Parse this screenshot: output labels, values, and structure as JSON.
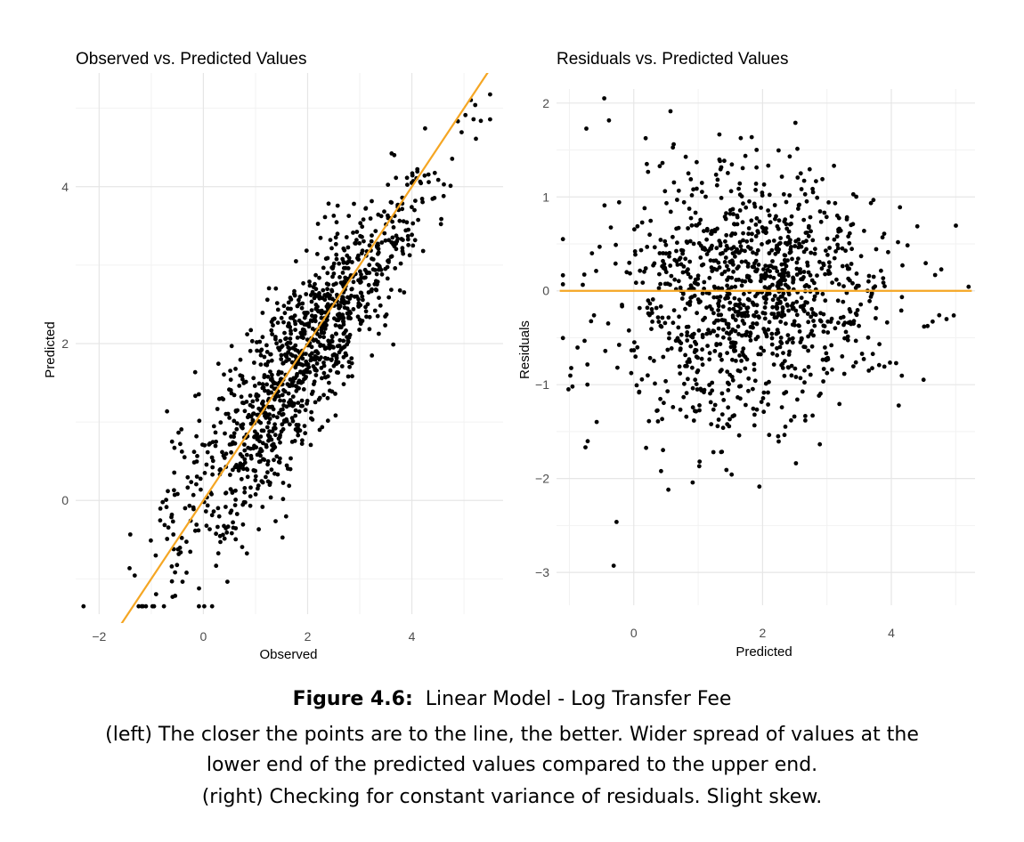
{
  "caption": {
    "label": "Figure 4.6:",
    "title": "Linear Model - Log Transfer Fee",
    "line2": "(left) The closer the points are to the line, the better. Wider spread of values at the",
    "line3": "lower end of the predicted values compared to the upper end.",
    "line4": "(right) Checking for constant variance of residuals. Slight skew."
  },
  "chart_data": [
    {
      "type": "scatter",
      "title": "Observed vs. Predicted Values",
      "xlabel": "Observed",
      "ylabel": "Predicted",
      "xlim": [
        -2.45,
        5.75
      ],
      "ylim": [
        -1.45,
        5.45
      ],
      "xticks": [
        -2,
        0,
        2,
        4
      ],
      "yticks": [
        0,
        2,
        4
      ],
      "grid": true,
      "point_color": "#000000",
      "line_color": "#F5A623",
      "reference_line": {
        "type": "identity",
        "intercept": 0,
        "slope": 1
      },
      "points_estimated": 1200
    },
    {
      "type": "scatter",
      "title": "Residuals vs. Predicted Values",
      "xlabel": "Predicted",
      "ylabel": "Residuals",
      "xlim": [
        -1.2,
        5.3
      ],
      "ylim": [
        -3.35,
        2.15
      ],
      "xticks": [
        0,
        2,
        4
      ],
      "yticks": [
        -3,
        -2,
        -1,
        0,
        1,
        2
      ],
      "grid": true,
      "point_color": "#000000",
      "line_color": "#F5A623",
      "reference_line": {
        "type": "horizontal",
        "y": 0,
        "x_range": [
          -1.15,
          5.25
        ]
      },
      "points_estimated": 1200
    }
  ]
}
